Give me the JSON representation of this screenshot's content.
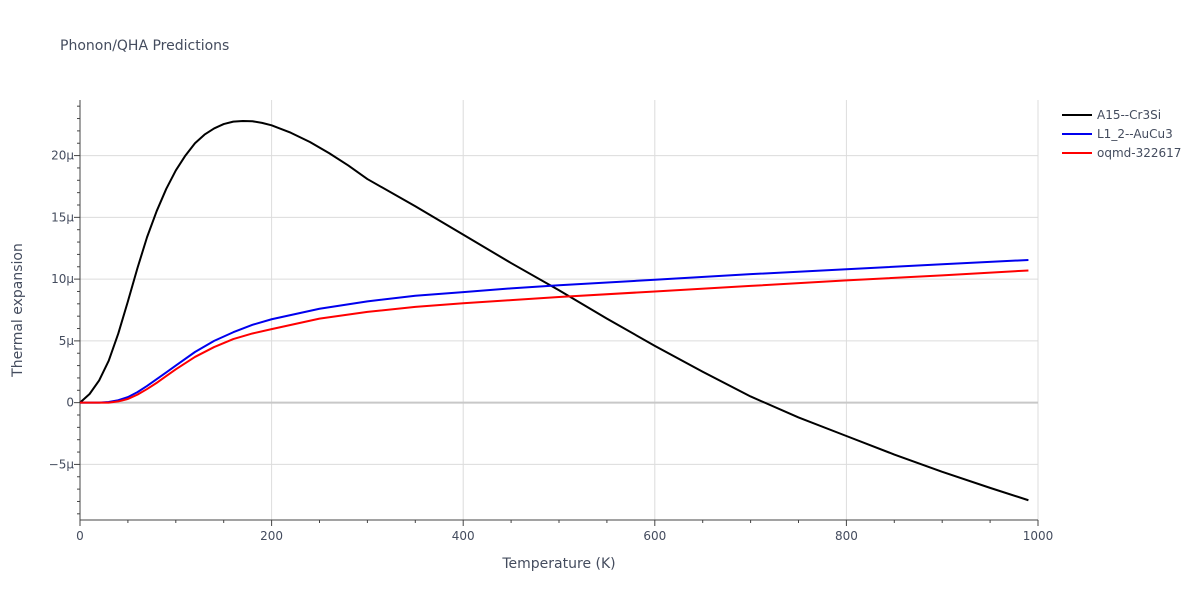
{
  "chart_data": {
    "type": "line",
    "title": "Phonon/QHA Predictions",
    "xlabel": "Temperature (K)",
    "ylabel": "Thermal expansion",
    "xlim": [
      0,
      1000
    ],
    "ylim": [
      -9.5e-06,
      2.45e-05
    ],
    "xticks": [
      0,
      200,
      400,
      600,
      800,
      1000
    ],
    "xtick_labels": [
      "0",
      "200",
      "400",
      "600",
      "800",
      "1000"
    ],
    "yticks": [
      -5e-06,
      0,
      5e-06,
      1e-05,
      1.5e-05,
      2e-05
    ],
    "ytick_labels": [
      "−5μ",
      "0",
      "5μ",
      "10μ",
      "15μ",
      "20μ"
    ],
    "grid": true,
    "legend_position": "top-right",
    "series": [
      {
        "name": "A15--Cr3Si",
        "color": "#000000",
        "x": [
          0,
          10,
          20,
          30,
          40,
          50,
          60,
          70,
          80,
          90,
          100,
          110,
          120,
          130,
          140,
          150,
          160,
          170,
          180,
          190,
          200,
          220,
          240,
          260,
          280,
          300,
          350,
          400,
          450,
          500,
          550,
          600,
          650,
          700,
          750,
          800,
          850,
          900,
          950,
          990
        ],
        "y": [
          0,
          7e-07,
          1.8e-06,
          3.4e-06,
          5.6e-06,
          8.2e-06,
          1.09e-05,
          1.34e-05,
          1.55e-05,
          1.73e-05,
          1.88e-05,
          2e-05,
          2.1e-05,
          2.17e-05,
          2.22e-05,
          2.255e-05,
          2.275e-05,
          2.28e-05,
          2.278e-05,
          2.265e-05,
          2.245e-05,
          2.185e-05,
          2.11e-05,
          2.02e-05,
          1.92e-05,
          1.81e-05,
          1.59e-05,
          1.36e-05,
          1.13e-05,
          9.1e-06,
          6.8e-06,
          4.6e-06,
          2.5e-06,
          5e-07,
          -1.2e-06,
          -2.7e-06,
          -4.2e-06,
          -5.6e-06,
          -6.9e-06,
          -7.9e-06
        ]
      },
      {
        "name": "L1_2--AuCu3",
        "color": "#0000ee",
        "x": [
          0,
          10,
          20,
          30,
          40,
          50,
          60,
          70,
          80,
          90,
          100,
          120,
          140,
          160,
          180,
          200,
          250,
          300,
          350,
          400,
          450,
          500,
          600,
          700,
          800,
          900,
          990
        ],
        "y": [
          0,
          0,
          0,
          5e-08,
          2e-07,
          4.5e-07,
          8.5e-07,
          1.35e-06,
          1.9e-06,
          2.45e-06,
          3e-06,
          4.1e-06,
          5e-06,
          5.7e-06,
          6.3e-06,
          6.75e-06,
          7.6e-06,
          8.2e-06,
          8.65e-06,
          8.95e-06,
          9.25e-06,
          9.5e-06,
          9.95e-06,
          1.04e-05,
          1.08e-05,
          1.12e-05,
          1.155e-05
        ]
      },
      {
        "name": "oqmd-322617",
        "color": "#ff0000",
        "x": [
          0,
          10,
          20,
          30,
          40,
          50,
          60,
          70,
          80,
          90,
          100,
          120,
          140,
          160,
          180,
          200,
          250,
          300,
          350,
          400,
          450,
          500,
          600,
          700,
          800,
          900,
          990
        ],
        "y": [
          0,
          0,
          0,
          0,
          1e-07,
          3e-07,
          6.5e-07,
          1.1e-06,
          1.6e-06,
          2.15e-06,
          2.7e-06,
          3.7e-06,
          4.5e-06,
          5.15e-06,
          5.6e-06,
          5.95e-06,
          6.8e-06,
          7.35e-06,
          7.75e-06,
          8.05e-06,
          8.3e-06,
          8.55e-06,
          9e-06,
          9.45e-06,
          9.9e-06,
          1.03e-05,
          1.07e-05
        ]
      }
    ]
  }
}
